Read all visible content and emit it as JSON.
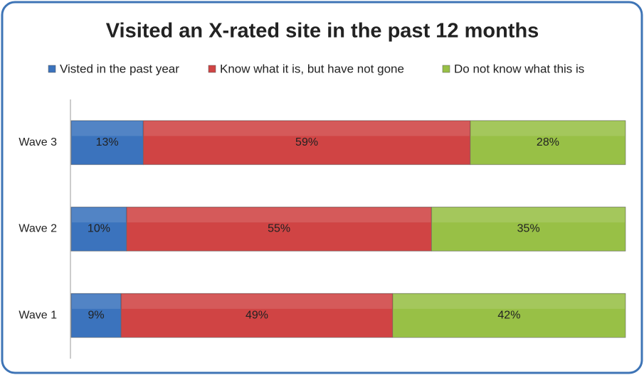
{
  "chart_data": {
    "type": "stacked-bar-100",
    "orientation": "horizontal",
    "title": "Visited an X-rated site in the past 12 months",
    "categories": [
      "Wave 3",
      "Wave 2",
      "Wave 1"
    ],
    "series": [
      {
        "name": "Visted in the past year",
        "color": "#3b73bd",
        "values": [
          13,
          10,
          9
        ],
        "value_labels": [
          "13%",
          "10%",
          "9%"
        ]
      },
      {
        "name": "Know what it is, but have not gone",
        "color": "#d04444",
        "values": [
          59,
          55,
          49
        ],
        "value_labels": [
          "59%",
          "55%",
          "49%"
        ]
      },
      {
        "name": "Do not know what this is",
        "color": "#98c046",
        "values": [
          28,
          35,
          42
        ],
        "value_labels": [
          "28%",
          "35%",
          "42%"
        ]
      }
    ],
    "legend": "top"
  }
}
